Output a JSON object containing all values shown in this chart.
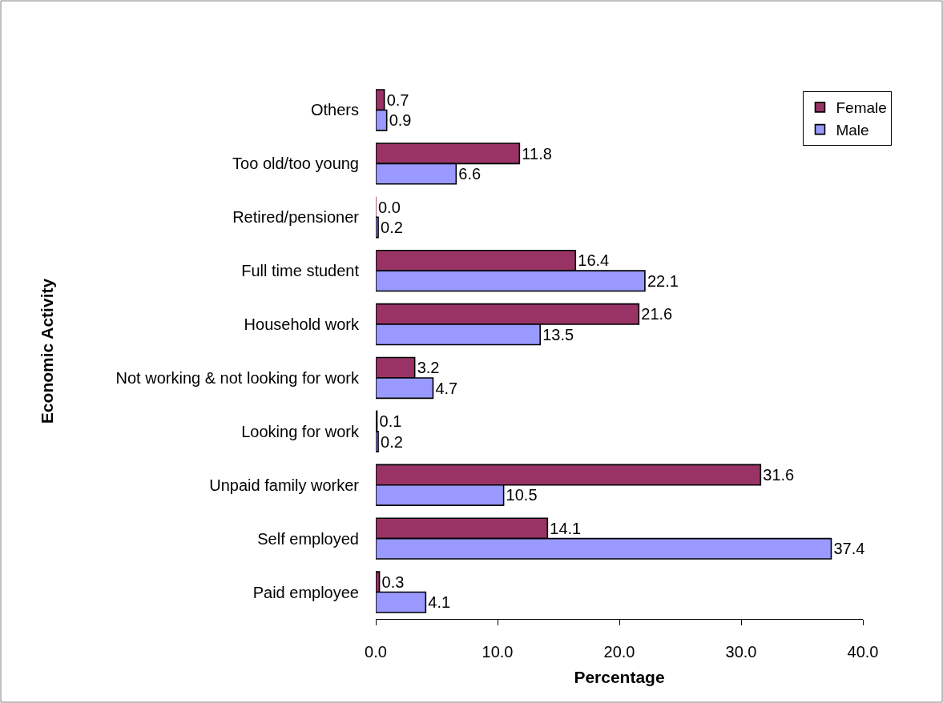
{
  "chart_data": {
    "type": "bar",
    "orientation": "horizontal",
    "xlabel": "Percentage",
    "ylabel": "Economic Activity",
    "categories": [
      "Others",
      "Too old/too young",
      "Retired/pensioner",
      "Full time student",
      "Household work",
      "Not working & not looking for work",
      "Looking for work",
      "Unpaid family worker",
      "Self employed",
      "Paid employee"
    ],
    "series": [
      {
        "name": "Female",
        "color": "#993366",
        "values": [
          0.7,
          11.8,
          0.0,
          16.4,
          21.6,
          3.2,
          0.1,
          31.6,
          14.1,
          0.3
        ],
        "value_labels": [
          "0.7",
          "11.8",
          "0.0",
          "16.4",
          "21.6",
          "3.2",
          "0.1",
          "31.6",
          "14.1",
          "0.3"
        ]
      },
      {
        "name": "Male",
        "color": "#9999ff",
        "values": [
          0.9,
          6.6,
          0.2,
          22.1,
          13.5,
          4.7,
          0.2,
          10.5,
          37.4,
          4.1
        ],
        "value_labels": [
          "0.9",
          "6.6",
          "0.2",
          "22.1",
          "13.5",
          "4.7",
          "0.2",
          "10.5",
          "37.4",
          "4.1"
        ]
      }
    ],
    "xlim": [
      0,
      40
    ],
    "xticks": [
      {
        "value": 0,
        "label": "0.0"
      },
      {
        "value": 10,
        "label": "10.0"
      },
      {
        "value": 20,
        "label": "20.0"
      },
      {
        "value": 30,
        "label": "30.0"
      },
      {
        "value": 40,
        "label": "40.0"
      }
    ],
    "legend": "top right"
  }
}
